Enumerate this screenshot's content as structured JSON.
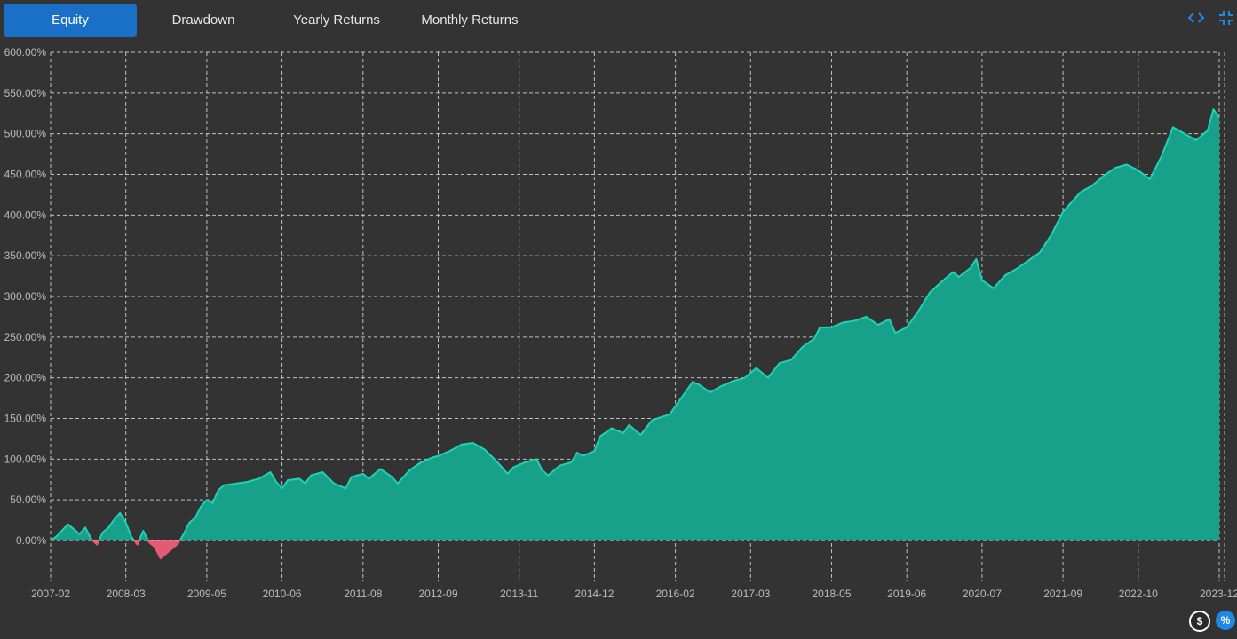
{
  "tabs": [
    {
      "label": "Equity",
      "active": true
    },
    {
      "label": "Drawdown",
      "active": false
    },
    {
      "label": "Yearly Returns",
      "active": false
    },
    {
      "label": "Monthly Returns",
      "active": false
    }
  ],
  "icons": {
    "code": "code-icon",
    "collapse": "collapse-icon",
    "dollar": "dollar-icon",
    "percent": "percent-icon"
  },
  "toggles": {
    "dollar_label": "$",
    "percent_label": "%",
    "selected": "percent"
  },
  "colors": {
    "background": "#333333",
    "positive_fill": "#17a08a",
    "positive_line": "#1ed2b2",
    "negative_fill": "#e35a72",
    "grid": "#d8d8d8",
    "tick_text": "#bbbbbb",
    "active_tab": "#1a6fc7",
    "accent": "#1e88e5"
  },
  "chart_data": {
    "type": "area",
    "title": "",
    "xlabel": "",
    "ylabel": "",
    "x_ticks": [
      "2007-02",
      "2008-03",
      "2009-05",
      "2010-06",
      "2011-08",
      "2012-09",
      "2013-11",
      "2014-12",
      "2016-02",
      "2017-03",
      "2018-05",
      "2019-06",
      "2020-07",
      "2021-09",
      "2022-10",
      "2023-12"
    ],
    "y_ticks": [
      "0.00%",
      "50.00%",
      "100.00%",
      "150.00%",
      "200.00%",
      "250.00%",
      "300.00%",
      "350.00%",
      "400.00%",
      "450.00%",
      "500.00%",
      "550.00%",
      "600.00%"
    ],
    "ylim": [
      0,
      600
    ],
    "grid": true,
    "fill_sign_colored": true,
    "series": [
      {
        "values_unit": "%",
        "points": [
          [
            "2007-02",
            0
          ],
          [
            "2007-03",
            5
          ],
          [
            "2007-05",
            20
          ],
          [
            "2007-06",
            14
          ],
          [
            "2007-07",
            8
          ],
          [
            "2007-08",
            16
          ],
          [
            "2007-09",
            2
          ],
          [
            "2007-10",
            -5
          ],
          [
            "2007-11",
            10
          ],
          [
            "2007-12",
            16
          ],
          [
            "2008-01",
            26
          ],
          [
            "2008-02",
            34
          ],
          [
            "2008-03",
            22
          ],
          [
            "2008-04",
            4
          ],
          [
            "2008-05",
            -5
          ],
          [
            "2008-06",
            12
          ],
          [
            "2008-07",
            -2
          ],
          [
            "2008-08",
            -8
          ],
          [
            "2008-09",
            -22
          ],
          [
            "2008-10",
            -16
          ],
          [
            "2008-11",
            -10
          ],
          [
            "2008-12",
            -4
          ],
          [
            "2009-01",
            8
          ],
          [
            "2009-02",
            22
          ],
          [
            "2009-03",
            28
          ],
          [
            "2009-04",
            42
          ],
          [
            "2009-05",
            50
          ],
          [
            "2009-06",
            46
          ],
          [
            "2009-07",
            62
          ],
          [
            "2009-08",
            68
          ],
          [
            "2009-10",
            70
          ],
          [
            "2009-12",
            72
          ],
          [
            "2010-02",
            76
          ],
          [
            "2010-04",
            84
          ],
          [
            "2010-05",
            72
          ],
          [
            "2010-06",
            64
          ],
          [
            "2010-07",
            74
          ],
          [
            "2010-09",
            76
          ],
          [
            "2010-10",
            70
          ],
          [
            "2010-11",
            80
          ],
          [
            "2011-01",
            84
          ],
          [
            "2011-03",
            70
          ],
          [
            "2011-05",
            64
          ],
          [
            "2011-06",
            78
          ],
          [
            "2011-08",
            82
          ],
          [
            "2011-09",
            76
          ],
          [
            "2011-11",
            88
          ],
          [
            "2012-01",
            78
          ],
          [
            "2012-02",
            70
          ],
          [
            "2012-04",
            86
          ],
          [
            "2012-06",
            96
          ],
          [
            "2012-08",
            102
          ],
          [
            "2012-09",
            104
          ],
          [
            "2012-11",
            110
          ],
          [
            "2013-01",
            118
          ],
          [
            "2013-03",
            120
          ],
          [
            "2013-05",
            112
          ],
          [
            "2013-07",
            98
          ],
          [
            "2013-09",
            82
          ],
          [
            "2013-10",
            90
          ],
          [
            "2013-12",
            96
          ],
          [
            "2014-02",
            100
          ],
          [
            "2014-03",
            86
          ],
          [
            "2014-04",
            80
          ],
          [
            "2014-06",
            92
          ],
          [
            "2014-08",
            96
          ],
          [
            "2014-09",
            108
          ],
          [
            "2014-10",
            104
          ],
          [
            "2014-12",
            110
          ],
          [
            "2015-01",
            128
          ],
          [
            "2015-03",
            138
          ],
          [
            "2015-05",
            132
          ],
          [
            "2015-06",
            142
          ],
          [
            "2015-08",
            130
          ],
          [
            "2015-10",
            148
          ],
          [
            "2016-01",
            155
          ],
          [
            "2016-03",
            175
          ],
          [
            "2016-05",
            195
          ],
          [
            "2016-06",
            192
          ],
          [
            "2016-08",
            182
          ],
          [
            "2016-10",
            190
          ],
          [
            "2016-12",
            196
          ],
          [
            "2017-02",
            200
          ],
          [
            "2017-04",
            212
          ],
          [
            "2017-06",
            200
          ],
          [
            "2017-08",
            218
          ],
          [
            "2017-10",
            222
          ],
          [
            "2017-12",
            238
          ],
          [
            "2018-02",
            248
          ],
          [
            "2018-03",
            262
          ],
          [
            "2018-05",
            262
          ],
          [
            "2018-07",
            268
          ],
          [
            "2018-09",
            270
          ],
          [
            "2018-11",
            275
          ],
          [
            "2019-01",
            265
          ],
          [
            "2019-03",
            272
          ],
          [
            "2019-04",
            255
          ],
          [
            "2019-06",
            262
          ],
          [
            "2019-08",
            282
          ],
          [
            "2019-10",
            305
          ],
          [
            "2019-12",
            318
          ],
          [
            "2020-02",
            330
          ],
          [
            "2020-03",
            324
          ],
          [
            "2020-05",
            335
          ],
          [
            "2020-06",
            346
          ],
          [
            "2020-07",
            320
          ],
          [
            "2020-09",
            310
          ],
          [
            "2020-11",
            326
          ],
          [
            "2021-01",
            334
          ],
          [
            "2021-03",
            344
          ],
          [
            "2021-05",
            354
          ],
          [
            "2021-07",
            376
          ],
          [
            "2021-09",
            404
          ],
          [
            "2021-10",
            412
          ],
          [
            "2021-12",
            428
          ],
          [
            "2022-02",
            436
          ],
          [
            "2022-04",
            448
          ],
          [
            "2022-06",
            458
          ],
          [
            "2022-08",
            462
          ],
          [
            "2022-10",
            455
          ],
          [
            "2022-12",
            444
          ],
          [
            "2023-02",
            472
          ],
          [
            "2023-04",
            508
          ],
          [
            "2023-06",
            500
          ],
          [
            "2023-08",
            492
          ],
          [
            "2023-10",
            504
          ],
          [
            "2023-11",
            530
          ],
          [
            "2023-12",
            520
          ]
        ]
      }
    ]
  }
}
